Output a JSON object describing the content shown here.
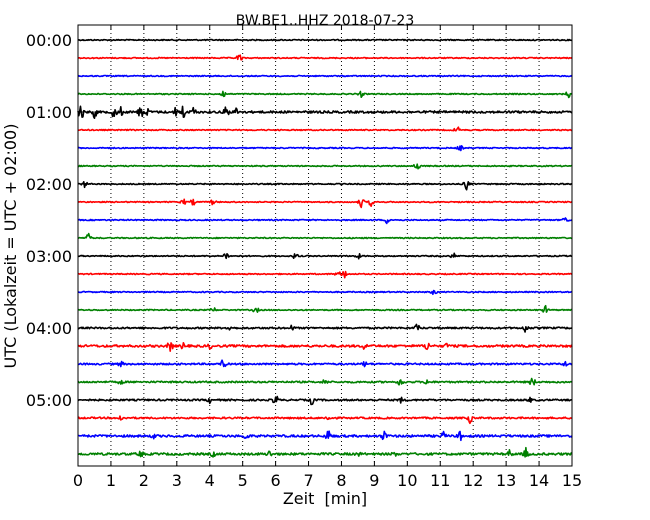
{
  "chart_data": {
    "type": "line",
    "title": "BW.BE1..HHZ 2018-07-23",
    "xlabel": "Zeit  [min]",
    "ylabel": "UTC (Lokalzeit = UTC + 02:00)",
    "xlim": [
      0,
      15
    ],
    "x_ticks": [
      "0",
      "1",
      "2",
      "3",
      "4",
      "5",
      "6",
      "7",
      "8",
      "9",
      "10",
      "11",
      "12",
      "13",
      "14",
      "15"
    ],
    "y_ticks": [
      "00:00",
      "01:00",
      "02:00",
      "03:00",
      "04:00",
      "05:00"
    ],
    "grid": "vertical dotted",
    "row_interval_minutes": 15,
    "colors": [
      "#000000",
      "#ff0000",
      "#0000ff",
      "#008000"
    ],
    "series": [
      {
        "start": "00:00",
        "bursts": [],
        "noise": 1
      },
      {
        "start": "00:15",
        "bursts": [
          [
            4.9,
            4
          ]
        ],
        "noise": 1
      },
      {
        "start": "00:30",
        "bursts": [],
        "noise": 1
      },
      {
        "start": "00:45",
        "bursts": [
          [
            4.4,
            4
          ],
          [
            8.6,
            3
          ],
          [
            14.9,
            4
          ]
        ],
        "noise": 1
      },
      {
        "start": "01:00",
        "bursts": [
          [
            0.1,
            9
          ],
          [
            0.5,
            6
          ],
          [
            1.1,
            7
          ],
          [
            1.3,
            5
          ],
          [
            1.9,
            7
          ],
          [
            2.1,
            4
          ],
          [
            3.0,
            7
          ],
          [
            3.2,
            8
          ],
          [
            3.5,
            5
          ],
          [
            4.5,
            7
          ],
          [
            4.8,
            4
          ]
        ],
        "noise": 2
      },
      {
        "start": "01:15",
        "bursts": [
          [
            11.5,
            4
          ]
        ],
        "noise": 1
      },
      {
        "start": "01:30",
        "bursts": [
          [
            11.6,
            3
          ]
        ],
        "noise": 1
      },
      {
        "start": "01:45",
        "bursts": [
          [
            10.3,
            5
          ]
        ],
        "noise": 1
      },
      {
        "start": "02:00",
        "bursts": [
          [
            0.2,
            3
          ],
          [
            11.8,
            6
          ]
        ],
        "noise": 1
      },
      {
        "start": "02:15",
        "bursts": [
          [
            3.2,
            3
          ],
          [
            3.5,
            3
          ],
          [
            4.1,
            3
          ],
          [
            8.6,
            5
          ],
          [
            8.9,
            4
          ]
        ],
        "noise": 1
      },
      {
        "start": "02:30",
        "bursts": [
          [
            9.4,
            4
          ],
          [
            14.8,
            3
          ]
        ],
        "noise": 1
      },
      {
        "start": "02:45",
        "bursts": [
          [
            0.3,
            5
          ]
        ],
        "noise": 1
      },
      {
        "start": "03:00",
        "bursts": [
          [
            4.5,
            4
          ],
          [
            6.6,
            3
          ],
          [
            8.5,
            3
          ],
          [
            11.4,
            3
          ]
        ],
        "noise": 1
      },
      {
        "start": "03:15",
        "bursts": [
          [
            8.1,
            5
          ],
          [
            7.9,
            3
          ]
        ],
        "noise": 1
      },
      {
        "start": "03:30",
        "bursts": [
          [
            10.8,
            3
          ]
        ],
        "noise": 1
      },
      {
        "start": "03:45",
        "bursts": [
          [
            4.1,
            3
          ],
          [
            5.4,
            3
          ],
          [
            14.2,
            4
          ]
        ],
        "noise": 1
      },
      {
        "start": "04:00",
        "bursts": [
          [
            4.6,
            3
          ],
          [
            6.5,
            3
          ],
          [
            10.3,
            4
          ],
          [
            13.6,
            5
          ]
        ],
        "noise": 1.5
      },
      {
        "start": "04:15",
        "bursts": [
          [
            2.8,
            6
          ],
          [
            3.2,
            4
          ],
          [
            4.0,
            3
          ],
          [
            8.7,
            4
          ],
          [
            10.6,
            5
          ],
          [
            11.2,
            3
          ]
        ],
        "noise": 2
      },
      {
        "start": "04:30",
        "bursts": [
          [
            4.4,
            5
          ],
          [
            1.3,
            3
          ],
          [
            8.7,
            3
          ],
          [
            14.8,
            3
          ]
        ],
        "noise": 1.5
      },
      {
        "start": "04:45",
        "bursts": [
          [
            1.3,
            3
          ],
          [
            7.5,
            3
          ],
          [
            9.8,
            5
          ],
          [
            10.6,
            3
          ],
          [
            13.8,
            5
          ]
        ],
        "noise": 1.5
      },
      {
        "start": "05:00",
        "bursts": [
          [
            4.0,
            3
          ],
          [
            6.0,
            6
          ],
          [
            7.1,
            5
          ],
          [
            9.8,
            3
          ],
          [
            13.7,
            3
          ]
        ],
        "noise": 1.5
      },
      {
        "start": "05:15",
        "bursts": [
          [
            11.9,
            5
          ],
          [
            1.3,
            3
          ],
          [
            7.6,
            3
          ]
        ],
        "noise": 1.5
      },
      {
        "start": "05:30",
        "bursts": [
          [
            2.3,
            3
          ],
          [
            5.1,
            4
          ],
          [
            7.6,
            7
          ],
          [
            9.3,
            6
          ],
          [
            11.1,
            4
          ],
          [
            11.6,
            5
          ]
        ],
        "noise": 2
      },
      {
        "start": "05:45",
        "bursts": [
          [
            1.9,
            4
          ],
          [
            4.1,
            3
          ],
          [
            5.8,
            4
          ],
          [
            8.5,
            3
          ],
          [
            9.6,
            3
          ],
          [
            13.1,
            4
          ],
          [
            13.6,
            6
          ]
        ],
        "noise": 2
      }
    ]
  }
}
